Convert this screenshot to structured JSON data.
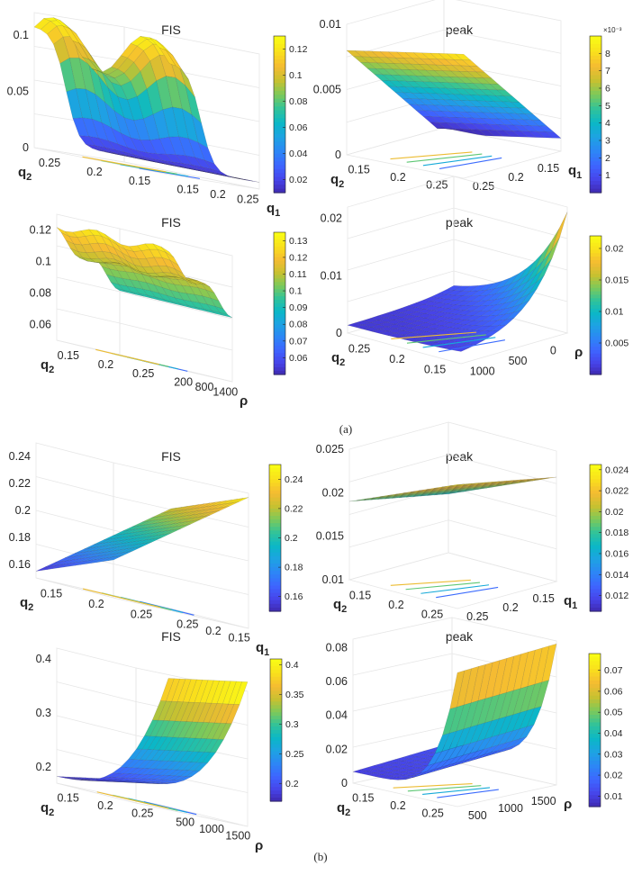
{
  "figure": {
    "caption_a": "(a)",
    "caption_b": "(b)"
  },
  "colormap": [
    "#3e26a8",
    "#4743e8",
    "#3e64ff",
    "#2d85f6",
    "#1ea2e3",
    "#0bb7c7",
    "#30c39a",
    "#7cc95a",
    "#c8c130",
    "#f5bb32",
    "#f9e01c",
    "#f9fb15"
  ],
  "chart_data": [
    {
      "id": "a1",
      "type": "surface",
      "title": "FIS",
      "axes": {
        "x": {
          "label": "q",
          "sub": "1",
          "ticks": [
            "0.15",
            "0.2",
            "0.25"
          ]
        },
        "y": {
          "label": "q",
          "sub": "2",
          "ticks": [
            "0.15",
            "0.2",
            "0.25"
          ]
        },
        "z": {
          "ticks": [
            "0",
            "0.05",
            "0.1"
          ],
          "range": [
            0,
            0.12
          ]
        }
      },
      "colorbar": {
        "ticks": [
          "0.12",
          "0.1",
          "0.08",
          "0.06",
          "0.04",
          "0.02"
        ],
        "range": [
          0.01,
          0.13
        ],
        "exponent": ""
      },
      "surface": {
        "shape": "cliff",
        "zmin": 0.0,
        "zmax": 0.12
      }
    },
    {
      "id": "a2",
      "type": "surface",
      "title": "peak",
      "axes": {
        "x": {
          "label": "q",
          "sub": "1",
          "ticks": [
            "0.25",
            "0.2",
            "0.15"
          ]
        },
        "y": {
          "label": "q",
          "sub": "2",
          "ticks": [
            "0.25",
            "0.2",
            "0.15"
          ]
        },
        "z": {
          "ticks": [
            "0",
            "0.005",
            "0.01"
          ],
          "range": [
            0,
            0.01
          ]
        }
      },
      "colorbar": {
        "ticks": [
          "8",
          "7",
          "6",
          "5",
          "4",
          "3",
          "2",
          "1"
        ],
        "range": [
          0,
          9
        ],
        "exponent": "×10⁻³"
      },
      "surface": {
        "shape": "ramp",
        "zmin": 0.0,
        "zmax": 0.0085
      }
    },
    {
      "id": "a3",
      "type": "surface",
      "title": "FIS",
      "axes": {
        "x": {
          "label": "ρ",
          "sub": "",
          "ticks": [
            "200",
            "800",
            "1400"
          ]
        },
        "y": {
          "label": "q",
          "sub": "2",
          "ticks": [
            "0.25",
            "0.2",
            "0.15"
          ]
        },
        "z": {
          "ticks": [
            "0.06",
            "0.08",
            "0.1",
            "0.12"
          ],
          "range": [
            0.05,
            0.13
          ]
        }
      },
      "colorbar": {
        "ticks": [
          "0.13",
          "0.12",
          "0.11",
          "0.1",
          "0.09",
          "0.08",
          "0.07",
          "0.06"
        ],
        "range": [
          0.05,
          0.135
        ],
        "exponent": ""
      },
      "surface": {
        "shape": "plateau",
        "zmin": 0.05,
        "zmax": 0.13
      }
    },
    {
      "id": "a4",
      "type": "surface",
      "title": "peak",
      "axes": {
        "x": {
          "label": "ρ",
          "sub": "",
          "ticks": [
            "1000",
            "500",
            "0"
          ]
        },
        "y": {
          "label": "q",
          "sub": "2",
          "ticks": [
            "0.15",
            "0.2",
            "0.25"
          ]
        },
        "z": {
          "ticks": [
            "0",
            "0.01",
            "0.02"
          ],
          "range": [
            0,
            0.022
          ]
        }
      },
      "colorbar": {
        "ticks": [
          "0.02",
          "0.015",
          "0.01",
          "0.005"
        ],
        "range": [
          0,
          0.022
        ],
        "exponent": ""
      },
      "surface": {
        "shape": "spike",
        "zmin": 0.0,
        "zmax": 0.02
      }
    },
    {
      "id": "b1",
      "type": "surface",
      "title": "FIS",
      "axes": {
        "x": {
          "label": "q",
          "sub": "1",
          "ticks": [
            "0.25",
            "0.2",
            "0.15"
          ]
        },
        "y": {
          "label": "q",
          "sub": "2",
          "ticks": [
            "0.25",
            "0.2",
            "0.15"
          ]
        },
        "z": {
          "ticks": [
            "0.16",
            "0.18",
            "0.2",
            "0.22",
            "0.24"
          ],
          "range": [
            0.15,
            0.25
          ]
        }
      },
      "colorbar": {
        "ticks": [
          "0.24",
          "0.22",
          "0.2",
          "0.18",
          "0.16"
        ],
        "range": [
          0.15,
          0.25
        ],
        "exponent": ""
      },
      "surface": {
        "shape": "slope",
        "zmin": 0.15,
        "zmax": 0.25
      }
    },
    {
      "id": "b2",
      "type": "surface",
      "title": "peak",
      "axes": {
        "x": {
          "label": "q",
          "sub": "1",
          "ticks": [
            "0.25",
            "0.2",
            "0.15"
          ]
        },
        "y": {
          "label": "q",
          "sub": "2",
          "ticks": [
            "0.25",
            "0.2",
            "0.15"
          ]
        },
        "z": {
          "ticks": [
            "0.01",
            "0.015",
            "0.02",
            "0.025"
          ],
          "range": [
            0.01,
            0.025
          ]
        }
      },
      "colorbar": {
        "ticks": [
          "0.024",
          "0.022",
          "0.02",
          "0.018",
          "0.016",
          "0.014",
          "0.012"
        ],
        "range": [
          0.0105,
          0.0245
        ],
        "exponent": ""
      },
      "surface": {
        "shape": "tilted",
        "zmin": 0.017,
        "zmax": 0.023
      }
    },
    {
      "id": "b3",
      "type": "surface",
      "title": "FIS",
      "axes": {
        "x": {
          "label": "ρ",
          "sub": "",
          "ticks": [
            "500",
            "1000",
            "1500"
          ]
        },
        "y": {
          "label": "q",
          "sub": "2",
          "ticks": [
            "0.25",
            "0.2",
            "0.15"
          ]
        },
        "z": {
          "ticks": [
            "0.2",
            "0.3",
            "0.4"
          ],
          "range": [
            0.17,
            0.42
          ]
        }
      },
      "colorbar": {
        "ticks": [
          "0.4",
          "0.35",
          "0.3",
          "0.25",
          "0.2"
        ],
        "range": [
          0.17,
          0.41
        ],
        "exponent": ""
      },
      "surface": {
        "shape": "valley",
        "zmin": 0.18,
        "zmax": 0.41
      }
    },
    {
      "id": "b4",
      "type": "surface",
      "title": "peak",
      "axes": {
        "x": {
          "label": "ρ",
          "sub": "",
          "ticks": [
            "500",
            "1000",
            "1500"
          ]
        },
        "y": {
          "label": "q",
          "sub": "2",
          "ticks": [
            "0.25",
            "0.2",
            "0.15"
          ]
        },
        "z": {
          "ticks": [
            "0",
            "0.02",
            "0.04",
            "0.06",
            "0.08"
          ],
          "range": [
            0,
            0.085
          ]
        }
      },
      "colorbar": {
        "ticks": [
          "0.07",
          "0.06",
          "0.05",
          "0.04",
          "0.03",
          "0.02",
          "0.01"
        ],
        "range": [
          0.005,
          0.078
        ],
        "exponent": ""
      },
      "surface": {
        "shape": "wall",
        "zmin": 0.01,
        "zmax": 0.078
      }
    }
  ]
}
